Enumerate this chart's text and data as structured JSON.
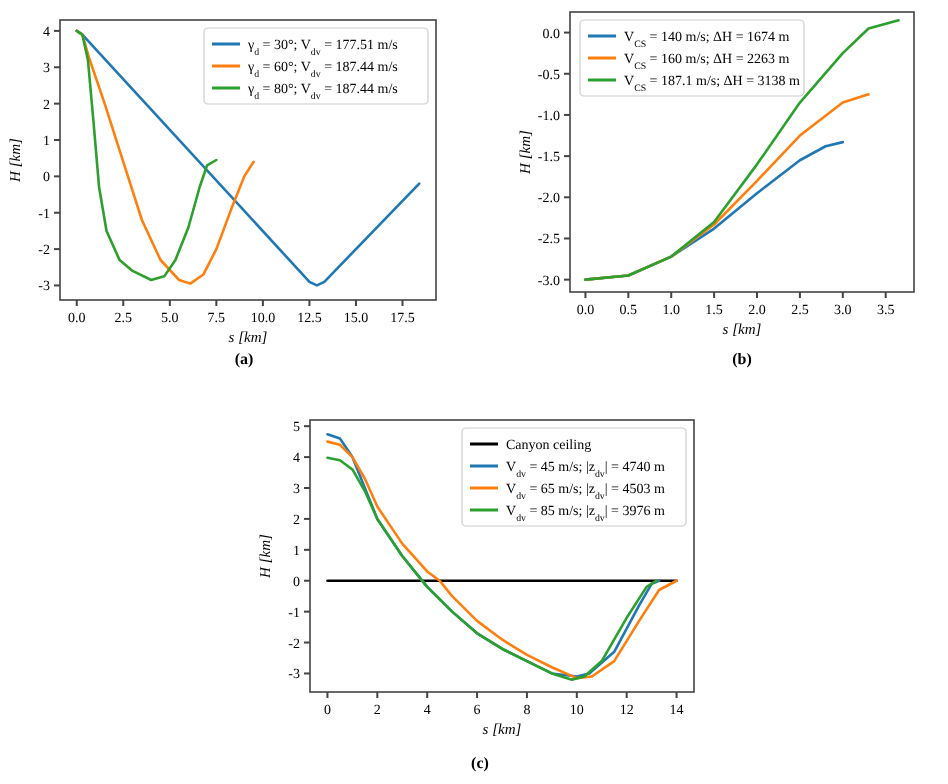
{
  "chart_data": [
    {
      "type": "line",
      "xlabel": "s [km]",
      "ylabel": "H [km]",
      "xlim": [
        -0.9,
        19.3
      ],
      "ylim": [
        -3.4,
        4.3
      ],
      "xticks": [
        {
          "value": 0,
          "label": "0.0"
        },
        {
          "value": 2.5,
          "label": "2.5"
        },
        {
          "value": 5,
          "label": "5.0"
        },
        {
          "value": 7.5,
          "label": "7.5"
        },
        {
          "value": 10,
          "label": "10.0"
        },
        {
          "value": 12.5,
          "label": "12.5"
        },
        {
          "value": 15,
          "label": "15.0"
        },
        {
          "value": 17.5,
          "label": "17.5"
        }
      ],
      "yticks": [
        -3,
        -2,
        -1,
        0,
        1,
        2,
        3,
        4
      ],
      "legend": "top right",
      "annotations": [
        "(a)"
      ],
      "series": [
        {
          "name": "γ$_{d}$ = 30°; V$_{dv}$ = 177.51 m/s",
          "color": "#1f77b4",
          "x": [
            0,
            0.3,
            12.5,
            12.9,
            13.3,
            18.4
          ],
          "values": [
            4,
            3.9,
            -2.9,
            -3.0,
            -2.9,
            -0.2
          ]
        },
        {
          "name": "γ$_{d}$ = 60°; V$_{dv}$ = 187.44 m/s",
          "color": "#ff7f0e",
          "x": [
            0,
            0.3,
            0.7,
            1.5,
            2.5,
            3.5,
            4.5,
            5.5,
            6.1,
            6.8,
            7.5,
            8.3,
            9.0,
            9.5
          ],
          "values": [
            4,
            3.9,
            3.2,
            2.0,
            0.4,
            -1.2,
            -2.3,
            -2.85,
            -2.95,
            -2.7,
            -2.0,
            -0.9,
            0.0,
            0.4
          ]
        },
        {
          "name": "γ$_{d}$ = 80°; V$_{dv}$ = 187.44 m/s",
          "color": "#2ca02c",
          "x": [
            0,
            0.3,
            0.6,
            0.9,
            1.2,
            1.6,
            2.3,
            3.0,
            4.0,
            4.7,
            5.3,
            6.0,
            6.6,
            7.0,
            7.5
          ],
          "values": [
            4,
            3.9,
            3.2,
            1.5,
            -0.3,
            -1.5,
            -2.3,
            -2.6,
            -2.85,
            -2.75,
            -2.3,
            -1.4,
            -0.3,
            0.3,
            0.45
          ]
        }
      ]
    },
    {
      "type": "line",
      "xlabel": "s [km]",
      "ylabel": "H [km]",
      "xlim": [
        -0.18,
        3.83
      ],
      "ylim": [
        -3.15,
        0.25
      ],
      "xticks": [
        {
          "value": 0,
          "label": "0.0"
        },
        {
          "value": 0.5,
          "label": "0.5"
        },
        {
          "value": 1,
          "label": "1.0"
        },
        {
          "value": 1.5,
          "label": "1.5"
        },
        {
          "value": 2,
          "label": "2.0"
        },
        {
          "value": 2.5,
          "label": "2.5"
        },
        {
          "value": 3,
          "label": "3.0"
        },
        {
          "value": 3.5,
          "label": "3.5"
        }
      ],
      "yticks": [
        {
          "value": -3,
          "label": "-3.0"
        },
        -2.5,
        {
          "value": -2,
          "label": "-2.0"
        },
        -1.5,
        {
          "value": -1,
          "label": "-1.0"
        },
        -0.5,
        {
          "value": 0,
          "label": "0.0"
        }
      ],
      "legend": "top left",
      "annotations": [
        "(b)"
      ],
      "series": [
        {
          "name": "V$_{CS}$ = 140 m/s; ΔH = 1674 m",
          "color": "#1f77b4",
          "x": [
            0,
            0.5,
            1.0,
            1.5,
            2.0,
            2.5,
            2.8,
            3.0
          ],
          "values": [
            -3,
            -2.95,
            -2.72,
            -2.38,
            -1.95,
            -1.55,
            -1.38,
            -1.33
          ]
        },
        {
          "name": "V$_{CS}$ = 160 m/s; ΔH = 2263 m",
          "color": "#ff7f0e",
          "x": [
            0,
            0.5,
            1.0,
            1.5,
            2.0,
            2.5,
            3.0,
            3.3
          ],
          "values": [
            -3,
            -2.95,
            -2.72,
            -2.33,
            -1.8,
            -1.25,
            -0.85,
            -0.75
          ]
        },
        {
          "name": "V$_{CS}$ = 187.1 m/s; ΔH = 3138 m",
          "color": "#2ca02c",
          "x": [
            0,
            0.5,
            1.0,
            1.5,
            2.0,
            2.5,
            3.0,
            3.3,
            3.65
          ],
          "values": [
            -3,
            -2.95,
            -2.72,
            -2.3,
            -1.6,
            -0.85,
            -0.25,
            0.05,
            0.15
          ]
        }
      ]
    },
    {
      "type": "line",
      "xlabel": "s [km]",
      "ylabel": "H [km]",
      "xlim": [
        -0.7,
        14.7
      ],
      "ylim": [
        -3.6,
        5.2
      ],
      "xticks": [
        0,
        2,
        4,
        6,
        8,
        10,
        12,
        14
      ],
      "yticks": [
        -3,
        -2,
        -1,
        0,
        1,
        2,
        3,
        4,
        5
      ],
      "legend": "top right",
      "annotations": [
        "(c)"
      ],
      "series": [
        {
          "name": "Canyon ceiling",
          "color": "#000000",
          "x": [
            0,
            14
          ],
          "values": [
            0,
            0
          ]
        },
        {
          "name": "V$_{dv}$ = 45 m/s; |z$_{dv}$| = 4740 m",
          "color": "#1f77b4",
          "x": [
            0,
            0.5,
            1,
            1.5,
            2,
            3,
            4,
            5,
            6,
            7,
            8,
            9,
            10,
            10.5,
            11.5,
            12.5,
            13,
            13.3
          ],
          "values": [
            4.74,
            4.6,
            4.0,
            3.0,
            2.0,
            0.8,
            -0.2,
            -1.0,
            -1.7,
            -2.2,
            -2.6,
            -3.0,
            -3.1,
            -3.0,
            -2.3,
            -0.8,
            -0.1,
            0
          ]
        },
        {
          "name": "V$_{dv}$ = 65 m/s; |z$_{dv}$| = 4503 m",
          "color": "#ff7f0e",
          "x": [
            0,
            0.5,
            1,
            1.5,
            2,
            3,
            4,
            4.5,
            5,
            6,
            7,
            8,
            9,
            10,
            10.6,
            11.5,
            12.5,
            13.3,
            14
          ],
          "values": [
            4.5,
            4.4,
            4.0,
            3.3,
            2.4,
            1.2,
            0.3,
            0,
            -0.5,
            -1.3,
            -1.9,
            -2.4,
            -2.8,
            -3.15,
            -3.1,
            -2.6,
            -1.3,
            -0.3,
            0
          ]
        },
        {
          "name": "V$_{dv}$ = 85 m/s; |z$_{dv}$| = 3976 m",
          "color": "#2ca02c",
          "x": [
            0,
            0.5,
            1,
            1.5,
            2,
            3,
            4,
            5,
            6,
            7,
            8,
            9,
            9.8,
            10.3,
            11,
            12,
            12.8,
            13.2
          ],
          "values": [
            3.98,
            3.9,
            3.6,
            2.9,
            2.0,
            0.8,
            -0.2,
            -1.0,
            -1.7,
            -2.2,
            -2.6,
            -3.0,
            -3.2,
            -3.1,
            -2.6,
            -1.2,
            -0.2,
            0
          ]
        }
      ]
    }
  ]
}
